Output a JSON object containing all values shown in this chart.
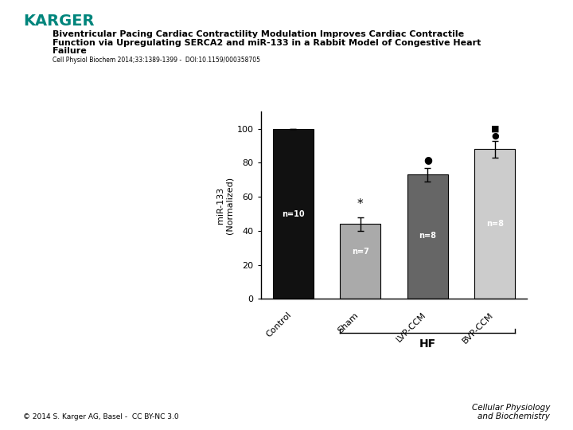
{
  "title_line1": "Biventricular Pacing Cardiac Contractility Modulation Improves Cardiac Contractile",
  "title_line2": "Function via Upregulating SERCA2 and miR-133 in a Rabbit Model of Congestive Heart",
  "title_line3": "Failure",
  "subtitle": "Cell Physiol Biochem 2014;33:1389-1399 -  DOI:10.1159/000358705",
  "karger_text": "KARGER",
  "karger_color": "#00857c",
  "categories": [
    "Control",
    "Sham",
    "LVP-CCM",
    "BVP-CCM"
  ],
  "values": [
    100,
    44,
    73,
    88
  ],
  "errors": [
    0,
    4,
    4,
    5
  ],
  "bar_colors": [
    "#111111",
    "#aaaaaa",
    "#666666",
    "#cccccc"
  ],
  "n_labels": [
    "n=10",
    "n=7",
    "n=8",
    "n=8"
  ],
  "ylabel": "miR-133\n(Normalized)",
  "ylim": [
    0,
    110
  ],
  "yticks": [
    0,
    20,
    40,
    60,
    80,
    100
  ],
  "hf_label": "HF",
  "significance_markers": {
    "1": "*",
    "2": "●",
    "3_square": "■",
    "3_circle": "●"
  },
  "footer_left": "© 2014 S. Karger AG, Basel -  CC BY-NC 3.0",
  "footer_right": "Cellular Physiology\nand Biochemistry",
  "bg_color": "#ffffff",
  "bar_edge_color": "#000000",
  "bar_width": 0.6
}
